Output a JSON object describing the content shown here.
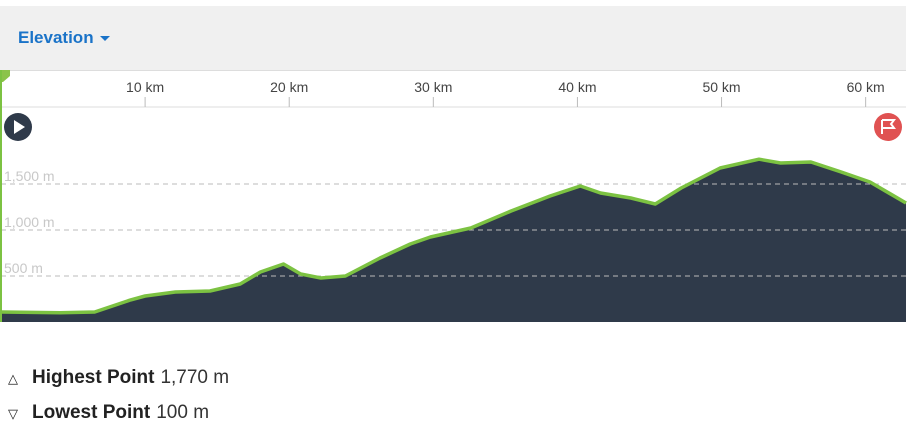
{
  "dropdown": {
    "label": "Elevation"
  },
  "chart_data": {
    "type": "area",
    "x": [
      0,
      4.1,
      6.5,
      9.0,
      10,
      12.1,
      14.5,
      16.6,
      18.0,
      19.6,
      20.8,
      22.2,
      23.9,
      26.3,
      28.4,
      29.8,
      32.6,
      35.4,
      38.1,
      40.2,
      41.6,
      43.7,
      45.4,
      47.2,
      49.9,
      52.6,
      54.1,
      56.2,
      58.3,
      60.3,
      62.8
    ],
    "values": [
      109,
      100,
      109,
      240,
      283,
      326,
      337,
      413,
      543,
      630,
      522,
      478,
      500,
      696,
      848,
      924,
      1022,
      1207,
      1370,
      1478,
      1402,
      1348,
      1283,
      1457,
      1674,
      1770,
      1728,
      1739,
      1630,
      1522,
      1293
    ],
    "color": "#7cc242",
    "fill": "#2f3a4a",
    "xlim": [
      0,
      62.8
    ],
    "xticks": [
      {
        "value": 10,
        "label": "10 km"
      },
      {
        "value": 20,
        "label": "20 km"
      },
      {
        "value": 30,
        "label": "30 km"
      },
      {
        "value": 40,
        "label": "40 km"
      },
      {
        "value": 50,
        "label": "50 km"
      },
      {
        "value": 60,
        "label": "60 km"
      }
    ],
    "ylim": [
      0,
      2300
    ],
    "yticks": [
      {
        "value": 500,
        "label": "500 m"
      },
      {
        "value": 1000,
        "label": "1,000 m"
      },
      {
        "value": 1500,
        "label": "1,500 m"
      }
    ],
    "grid": true
  },
  "stats": [
    {
      "label": "Highest Point",
      "value": "1,770 m"
    },
    {
      "label": "Lowest Point",
      "value": "100 m"
    }
  ]
}
